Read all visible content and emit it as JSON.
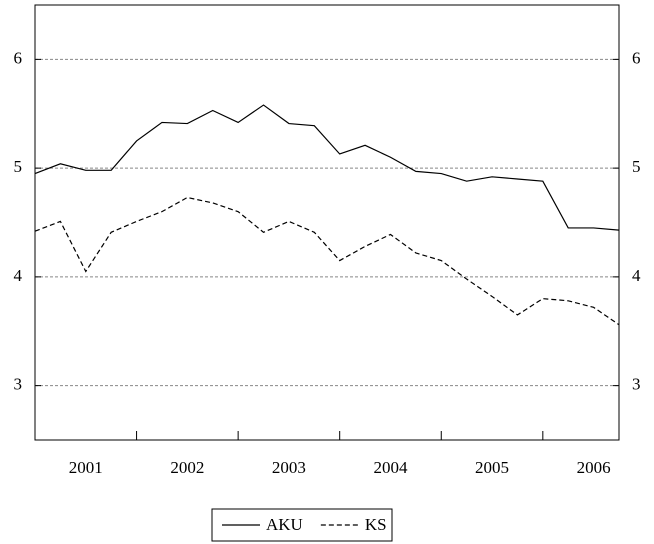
{
  "chart_data": {
    "type": "line",
    "categories": [
      "2001",
      null,
      null,
      null,
      "2002",
      null,
      null,
      null,
      "2003",
      null,
      null,
      null,
      "2004",
      null,
      null,
      null,
      "2005",
      null,
      null,
      null,
      "2006",
      null,
      null,
      null
    ],
    "series": [
      {
        "name": "AKU",
        "color": "#000000",
        "style": "solid",
        "values": [
          4.95,
          5.04,
          4.98,
          4.98,
          5.25,
          5.42,
          5.41,
          5.53,
          5.42,
          5.58,
          5.41,
          5.39,
          5.13,
          5.21,
          5.1,
          4.97,
          4.95,
          4.88,
          4.92,
          4.9,
          4.88,
          4.45,
          4.45,
          4.43
        ]
      },
      {
        "name": "KS",
        "color": "#000000",
        "style": "dashed",
        "values": [
          4.42,
          4.51,
          4.05,
          4.41,
          4.51,
          4.6,
          4.73,
          4.68,
          4.6,
          4.41,
          4.51,
          4.41,
          4.15,
          4.28,
          4.39,
          4.22,
          4.15,
          3.98,
          3.82,
          3.65,
          3.8,
          3.78,
          3.72,
          3.56
        ]
      }
    ],
    "ylim": [
      2.5,
      6.5
    ],
    "yticks": [
      3,
      4,
      5,
      6
    ],
    "grid": true,
    "legend": "bottom"
  }
}
